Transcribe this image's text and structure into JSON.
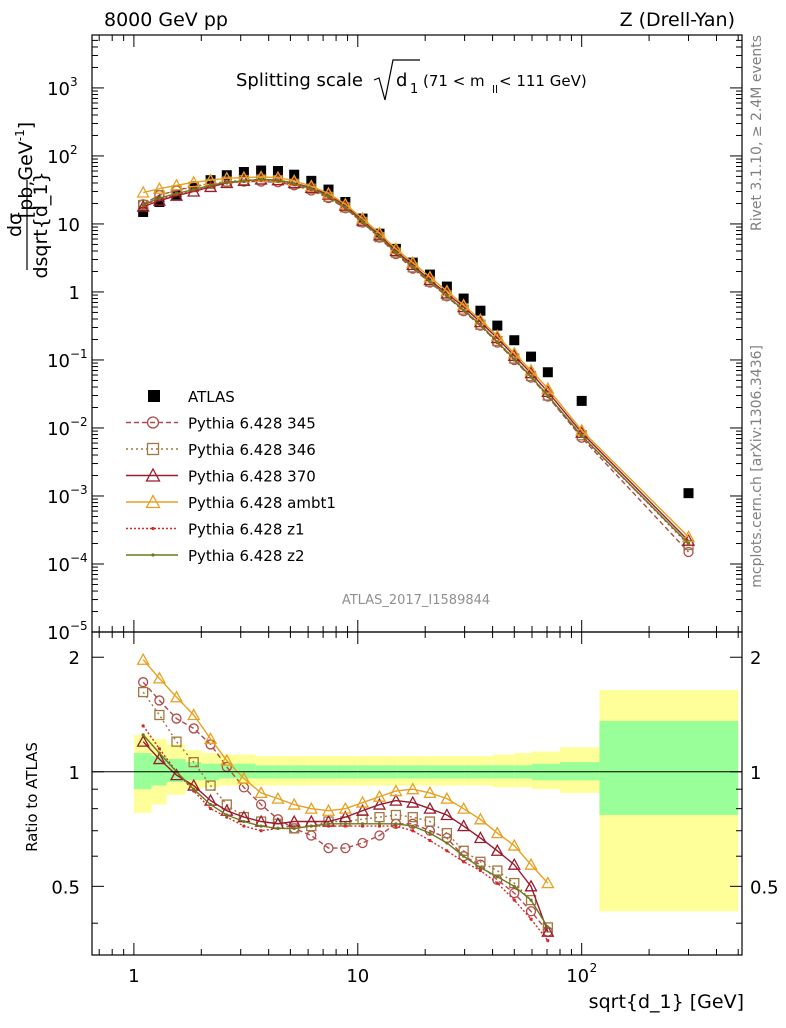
{
  "header": {
    "left": "8000 GeV pp",
    "right": "Z (Drell-Yan)"
  },
  "title": {
    "main": "Splitting scale",
    "sub": "d",
    "sub_index": "1",
    "cut_pre": "(71 < m",
    "cut_sub": "ll",
    "cut_post": " < 111 GeV)"
  },
  "axes": {
    "ylabel_main": {
      "num": "dσ",
      "den": "dsqrt{d_1}",
      "unit": "[pb,GeV",
      "unit_exp": "-1",
      "unit_close": "]"
    },
    "ylabel_ratio": "Ratio to ATLAS",
    "xlabel": "sqrt{d_1} [GeV]",
    "x_ticks": [
      {
        "v": 1,
        "label": "1"
      },
      {
        "v": 10,
        "label": "10"
      }
    ],
    "x_tick_100": {
      "base": "10",
      "exp": "2"
    },
    "y_ticks_main": [
      {
        "v": 1000,
        "base": "10",
        "exp": "3"
      },
      {
        "v": 100,
        "base": "10",
        "exp": "2"
      },
      {
        "v": 10,
        "base": "10",
        "exp": ""
      },
      {
        "v": 1,
        "base": "1",
        "exp": ""
      },
      {
        "v": 0.1,
        "base": "10",
        "exp": "−1"
      },
      {
        "v": 0.01,
        "base": "10",
        "exp": "−2"
      },
      {
        "v": 0.001,
        "base": "10",
        "exp": "−3"
      },
      {
        "v": 0.0001,
        "base": "10",
        "exp": "−4"
      },
      {
        "v": 1e-05,
        "base": "10",
        "exp": "−5"
      }
    ],
    "y_ticks_ratio": [
      {
        "v": 2,
        "label": "2"
      },
      {
        "v": 1,
        "label": "1"
      },
      {
        "v": 0.5,
        "label": "0.5"
      }
    ]
  },
  "side_labels": {
    "rivet": "Rivet 3.1.10, ≥ 2.4M events",
    "mcplots": "mcplots.cern.ch [arXiv:1306.3436]"
  },
  "watermark": "ATLAS_2017_I1589844",
  "legend": [
    {
      "label": "ATLAS"
    },
    {
      "label": "Pythia 6.428 345"
    },
    {
      "label": "Pythia 6.428 346"
    },
    {
      "label": "Pythia 6.428 370"
    },
    {
      "label": "Pythia 6.428 ambt1"
    },
    {
      "label": "Pythia 6.428 z1"
    },
    {
      "label": "Pythia 6.428 z2"
    }
  ],
  "chart_data": {
    "type": "scatter",
    "x_scale": "log",
    "y_scale": "log",
    "xlim": [
      0.65,
      520
    ],
    "ylim": [
      1e-05,
      6000
    ],
    "ratio_ylim": [
      0.33,
      2.33
    ],
    "x": [
      1.1,
      1.3,
      1.55,
      1.85,
      2.2,
      2.6,
      3.1,
      3.7,
      4.4,
      5.2,
      6.2,
      7.4,
      8.8,
      10.5,
      12.5,
      14.8,
      17.6,
      21,
      25,
      29.7,
      35.3,
      42,
      50,
      59.4,
      70.6,
      100,
      300
    ],
    "series": [
      {
        "name": "ATLAS",
        "color": "#000000",
        "marker": "square",
        "values": [
          15,
          21,
          27,
          35,
          44,
          52,
          58,
          61,
          60,
          53,
          43,
          32,
          21,
          12,
          7.2,
          4.3,
          2.7,
          1.8,
          1.2,
          0.8,
          0.53,
          0.32,
          0.195,
          0.112,
          0.066,
          0.025,
          0.0011
        ]
      },
      {
        "name": "Pythia 6.428 345",
        "color": "#b34a4a",
        "marker": "circle",
        "dash": "5,3",
        "values": [
          19.5,
          26.5,
          31,
          36,
          39,
          41,
          42,
          42,
          41,
          37,
          31,
          24,
          17,
          10.5,
          6.3,
          3.6,
          2.2,
          1.38,
          0.86,
          0.52,
          0.32,
          0.18,
          0.1,
          0.055,
          0.029,
          0.0072,
          0.00015
        ],
        "ratio": [
          1.72,
          1.54,
          1.38,
          1.3,
          1.18,
          1.03,
          0.91,
          0.82,
          0.75,
          0.71,
          0.68,
          0.63,
          0.63,
          0.65,
          0.68,
          0.73,
          0.73,
          0.7,
          0.67,
          0.6,
          0.57,
          0.52,
          0.48,
          0.43,
          0.38
        ]
      },
      {
        "name": "Pythia 6.428 346",
        "color": "#a07840",
        "marker": "square_open",
        "dash": "2,3",
        "values": [
          19,
          26.5,
          31,
          35,
          39,
          42,
          44,
          45,
          44,
          39,
          33,
          25,
          17.5,
          10.7,
          6.4,
          3.8,
          2.3,
          1.42,
          0.89,
          0.55,
          0.33,
          0.19,
          0.105,
          0.058,
          0.03,
          0.0078,
          0.00019
        ],
        "ratio": [
          1.62,
          1.41,
          1.2,
          1.06,
          0.92,
          0.82,
          0.76,
          0.74,
          0.73,
          0.71,
          0.72,
          0.74,
          0.74,
          0.75,
          0.76,
          0.77,
          0.76,
          0.74,
          0.69,
          0.62,
          0.58,
          0.55,
          0.51,
          0.46,
          0.39
        ]
      },
      {
        "name": "Pythia 6.428 370",
        "color": "#9b1b2f",
        "marker": "triangle_open",
        "dash": "",
        "values": [
          18,
          22,
          26,
          30,
          35,
          40,
          43,
          45,
          44,
          40,
          34,
          27,
          18.5,
          11.2,
          6.8,
          4,
          2.5,
          1.5,
          0.95,
          0.6,
          0.36,
          0.21,
          0.115,
          0.064,
          0.034,
          0.0085,
          0.00022
        ],
        "ratio": [
          1.2,
          1.08,
          0.98,
          0.92,
          0.84,
          0.79,
          0.76,
          0.74,
          0.73,
          0.74,
          0.74,
          0.74,
          0.76,
          0.79,
          0.82,
          0.84,
          0.83,
          0.8,
          0.77,
          0.72,
          0.67,
          0.62,
          0.57,
          0.5,
          0.38
        ]
      },
      {
        "name": "Pythia 6.428 ambt1",
        "color": "#e8a020",
        "marker": "triangle_open",
        "dash": "",
        "values": [
          29,
          33,
          37,
          41,
          44,
          47,
          48,
          49,
          48,
          43,
          36,
          28,
          19.5,
          12,
          7.3,
          4.3,
          2.7,
          1.65,
          1.03,
          0.64,
          0.39,
          0.225,
          0.125,
          0.07,
          0.038,
          0.0092,
          0.00025
        ],
        "ratio": [
          1.97,
          1.76,
          1.57,
          1.41,
          1.22,
          1.07,
          0.96,
          0.88,
          0.85,
          0.82,
          0.8,
          0.79,
          0.8,
          0.83,
          0.86,
          0.89,
          0.9,
          0.88,
          0.85,
          0.8,
          0.75,
          0.69,
          0.64,
          0.57,
          0.51
        ]
      },
      {
        "name": "Pythia 6.428 z1",
        "color": "#d62a2a",
        "marker": "dot",
        "dash": "2,2",
        "values": [
          18,
          23,
          27,
          31,
          36,
          40,
          42,
          44,
          43,
          38,
          32,
          25,
          17,
          10.5,
          6.3,
          3.7,
          2.3,
          1.4,
          0.87,
          0.53,
          0.32,
          0.18,
          0.1,
          0.056,
          0.029,
          0.0075,
          0.0002
        ],
        "ratio": [
          1.32,
          1.15,
          1.0,
          0.89,
          0.8,
          0.76,
          0.72,
          0.7,
          0.71,
          0.71,
          0.72,
          0.72,
          0.72,
          0.72,
          0.72,
          0.72,
          0.7,
          0.66,
          0.62,
          0.58,
          0.55,
          0.51,
          0.46,
          0.41,
          0.36
        ]
      },
      {
        "name": "Pythia 6.428 z2",
        "color": "#6b7a1f",
        "marker": "dot",
        "dash": "",
        "values": [
          19,
          24,
          28,
          32,
          37,
          41,
          43,
          45,
          44,
          39,
          33,
          25.5,
          17.5,
          10.8,
          6.5,
          3.8,
          2.35,
          1.42,
          0.88,
          0.54,
          0.33,
          0.185,
          0.103,
          0.057,
          0.03,
          0.0077,
          0.0002
        ],
        "ratio": [
          1.25,
          1.12,
          1.0,
          0.9,
          0.82,
          0.77,
          0.74,
          0.72,
          0.71,
          0.71,
          0.72,
          0.73,
          0.73,
          0.73,
          0.73,
          0.73,
          0.72,
          0.69,
          0.65,
          0.6,
          0.56,
          0.53,
          0.5,
          0.46,
          0.39
        ]
      }
    ],
    "ratio_band": {
      "edges": [
        1.0,
        1.2,
        1.4,
        1.7,
        2.0,
        2.4,
        2.9,
        3.5,
        4.2,
        5.0,
        6.0,
        8.0,
        10,
        15,
        20,
        30,
        40,
        50,
        60,
        80,
        120,
        500
      ],
      "stat_lo": [
        0.9,
        0.92,
        0.94,
        0.95,
        0.95,
        0.96,
        0.96,
        0.96,
        0.96,
        0.96,
        0.96,
        0.96,
        0.96,
        0.96,
        0.96,
        0.96,
        0.96,
        0.96,
        0.95,
        0.95,
        0.77
      ],
      "stat_hi": [
        1.12,
        1.1,
        1.08,
        1.06,
        1.05,
        1.05,
        1.05,
        1.04,
        1.04,
        1.04,
        1.04,
        1.04,
        1.04,
        1.04,
        1.04,
        1.04,
        1.04,
        1.04,
        1.05,
        1.06,
        1.36
      ],
      "tot_lo": [
        0.78,
        0.82,
        0.87,
        0.9,
        0.91,
        0.92,
        0.92,
        0.92,
        0.92,
        0.92,
        0.92,
        0.92,
        0.92,
        0.92,
        0.92,
        0.92,
        0.91,
        0.91,
        0.9,
        0.88,
        0.43
      ],
      "tot_hi": [
        1.25,
        1.22,
        1.18,
        1.14,
        1.12,
        1.11,
        1.11,
        1.1,
        1.1,
        1.1,
        1.1,
        1.1,
        1.1,
        1.1,
        1.1,
        1.1,
        1.11,
        1.12,
        1.13,
        1.16,
        1.64
      ]
    },
    "colors": {
      "stat_band": "#99ff99",
      "tot_band": "#ffff99"
    }
  }
}
